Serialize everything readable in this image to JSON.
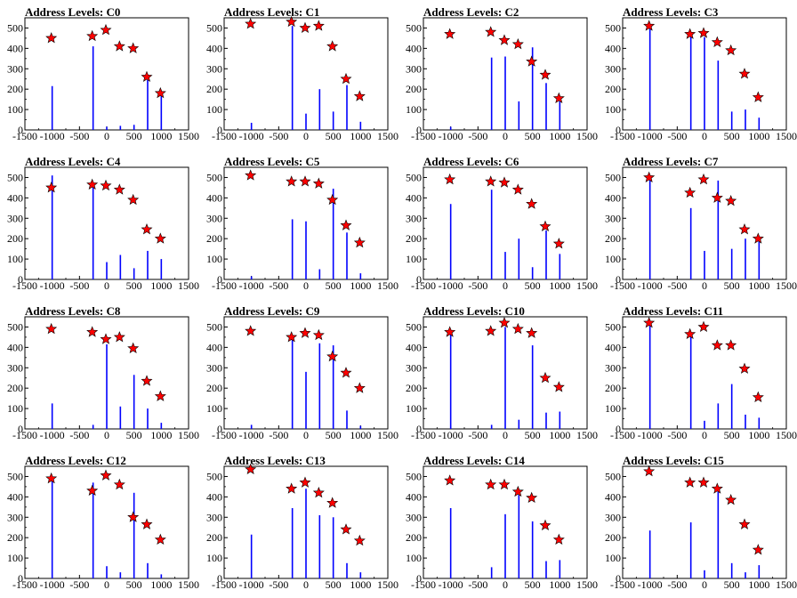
{
  "chart_data": [
    {
      "type": "bar",
      "title": "Address Levels: C0",
      "x": [
        -1000,
        -250,
        0,
        250,
        500,
        750,
        1000
      ],
      "values": [
        215,
        410,
        15,
        20,
        25,
        245,
        170
      ],
      "markers": [
        450,
        460,
        490,
        410,
        400,
        260,
        180
      ]
    },
    {
      "type": "bar",
      "title": "Address Levels: C1",
      "x": [
        -1000,
        -250,
        0,
        250,
        500,
        750,
        1000
      ],
      "values": [
        35,
        510,
        80,
        200,
        90,
        220,
        40
      ],
      "markers": [
        520,
        530,
        500,
        510,
        410,
        250,
        165
      ]
    },
    {
      "type": "bar",
      "title": "Address Levels: C2",
      "x": [
        -1000,
        -250,
        0,
        250,
        500,
        750,
        1000
      ],
      "values": [
        15,
        355,
        360,
        140,
        405,
        230,
        140
      ],
      "markers": [
        470,
        480,
        440,
        420,
        335,
        270,
        155
      ]
    },
    {
      "type": "bar",
      "title": "Address Levels: C3",
      "x": [
        -1000,
        -250,
        0,
        250,
        500,
        750,
        1000
      ],
      "values": [
        510,
        460,
        455,
        340,
        90,
        100,
        60
      ],
      "markers": [
        510,
        470,
        475,
        430,
        390,
        275,
        160
      ]
    },
    {
      "type": "bar",
      "title": "Address Levels: C4",
      "x": [
        -1000,
        -250,
        0,
        250,
        500,
        750,
        1000
      ],
      "values": [
        510,
        460,
        85,
        120,
        55,
        140,
        100
      ],
      "markers": [
        450,
        465,
        460,
        440,
        390,
        245,
        200
      ]
    },
    {
      "type": "bar",
      "title": "Address Levels: C5",
      "x": [
        -1000,
        -250,
        0,
        250,
        500,
        750,
        1000
      ],
      "values": [
        15,
        295,
        285,
        50,
        445,
        230,
        30
      ],
      "markers": [
        510,
        480,
        480,
        470,
        390,
        265,
        180
      ]
    },
    {
      "type": "bar",
      "title": "Address Levels: C6",
      "x": [
        -1000,
        -250,
        0,
        250,
        500,
        750,
        1000
      ],
      "values": [
        370,
        440,
        135,
        200,
        60,
        240,
        125
      ],
      "markers": [
        490,
        480,
        475,
        440,
        370,
        260,
        175
      ]
    },
    {
      "type": "bar",
      "title": "Address Levels: C7",
      "x": [
        -1000,
        -250,
        0,
        250,
        500,
        750,
        1000
      ],
      "values": [
        500,
        350,
        140,
        485,
        150,
        200,
        190
      ],
      "markers": [
        500,
        425,
        490,
        400,
        385,
        245,
        200
      ]
    },
    {
      "type": "bar",
      "title": "Address Levels: C8",
      "x": [
        -1000,
        -250,
        0,
        250,
        500,
        750,
        1000
      ],
      "values": [
        125,
        20,
        415,
        110,
        265,
        100,
        30
      ],
      "markers": [
        490,
        475,
        440,
        450,
        395,
        235,
        160
      ]
    },
    {
      "type": "bar",
      "title": "Address Levels: C9",
      "x": [
        -1000,
        -250,
        0,
        250,
        500,
        750,
        1000
      ],
      "values": [
        20,
        460,
        280,
        420,
        410,
        90,
        15
      ],
      "markers": [
        480,
        450,
        470,
        460,
        355,
        275,
        200
      ]
    },
    {
      "type": "bar",
      "title": "Address Levels: C10",
      "x": [
        -1000,
        -250,
        0,
        250,
        500,
        750,
        1000
      ],
      "values": [
        480,
        20,
        500,
        45,
        410,
        80,
        85
      ],
      "markers": [
        475,
        480,
        520,
        490,
        470,
        250,
        205
      ]
    },
    {
      "type": "bar",
      "title": "Address Levels: C11",
      "x": [
        -1000,
        -250,
        0,
        250,
        500,
        750,
        1000
      ],
      "values": [
        520,
        470,
        40,
        125,
        220,
        70,
        55
      ],
      "markers": [
        520,
        465,
        500,
        410,
        410,
        295,
        155
      ]
    },
    {
      "type": "bar",
      "title": "Address Levels: C12",
      "x": [
        -1000,
        -250,
        0,
        250,
        500,
        750,
        1000
      ],
      "values": [
        490,
        470,
        60,
        30,
        420,
        75,
        20
      ],
      "markers": [
        490,
        430,
        505,
        460,
        300,
        265,
        190
      ]
    },
    {
      "type": "bar",
      "title": "Address Levels: C13",
      "x": [
        -1000,
        -250,
        0,
        250,
        500,
        750,
        1000
      ],
      "values": [
        215,
        345,
        440,
        310,
        300,
        75,
        30
      ],
      "markers": [
        535,
        440,
        470,
        420,
        370,
        240,
        185
      ]
    },
    {
      "type": "bar",
      "title": "Address Levels: C14",
      "x": [
        -1000,
        -250,
        0,
        250,
        500,
        750,
        1000
      ],
      "values": [
        345,
        55,
        315,
        410,
        280,
        85,
        90
      ],
      "markers": [
        480,
        460,
        460,
        425,
        395,
        260,
        190
      ]
    },
    {
      "type": "bar",
      "title": "Address Levels: C15",
      "x": [
        -1000,
        -250,
        0,
        250,
        500,
        750,
        1000
      ],
      "values": [
        235,
        275,
        40,
        440,
        75,
        30,
        65
      ],
      "markers": [
        525,
        470,
        470,
        440,
        385,
        265,
        140
      ]
    }
  ],
  "axes": {
    "xlim": [
      -1500,
      1500
    ],
    "ylim": [
      0,
      550
    ],
    "xticks": [
      -1500,
      -1000,
      -500,
      0,
      500,
      1000,
      1500
    ],
    "xtick_labels": [
      "-1500",
      "-1000",
      "-500",
      "0",
      "500",
      "1000",
      "1500"
    ],
    "yticks": [
      0,
      100,
      200,
      300,
      400,
      500
    ],
    "ytick_labels": [
      "0",
      "100",
      "200",
      "300",
      "400",
      "500"
    ]
  },
  "colors": {
    "bar": "#0000ff",
    "marker": "#ff0000",
    "marker_edge": "#000000",
    "axis": "#000000"
  }
}
